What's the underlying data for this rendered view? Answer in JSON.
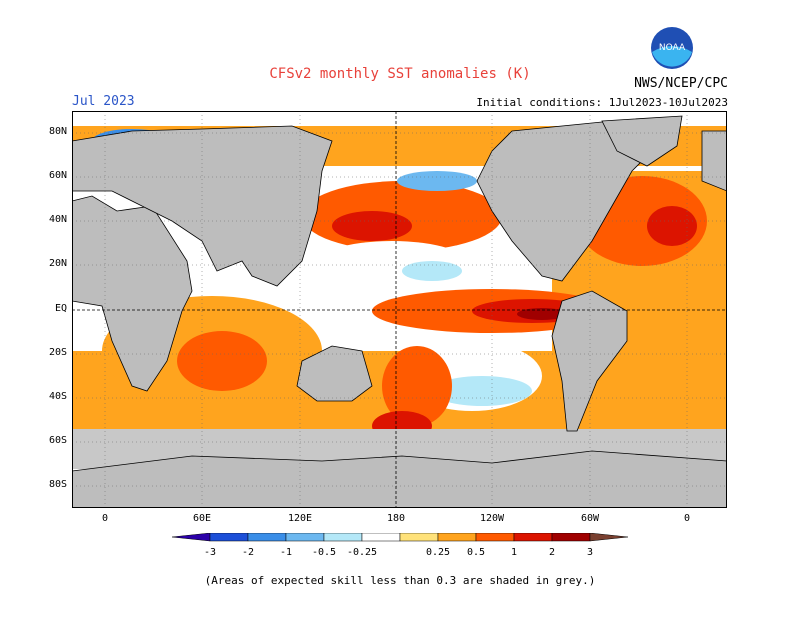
{
  "title": "CFSv2 monthly SST anomalies (K)",
  "month": "Jul 2023",
  "initial_conditions": "Initial conditions: 1Jul2023-10Jul2023",
  "agency": "NWS/NCEP/CPC",
  "logo_text": "NOAA",
  "note": "(Areas of expected skill less than 0.3 are shaded in grey.)",
  "y_ticks": [
    "80N",
    "60N",
    "40N",
    "20N",
    "EQ",
    "20S",
    "40S",
    "60S",
    "80S"
  ],
  "x_ticks": [
    "0",
    "60E",
    "120E",
    "180",
    "120W",
    "60W",
    "0"
  ],
  "legend": {
    "labels": [
      "-3",
      "-2",
      "-1",
      "-0.5",
      "-0.25",
      "0.25",
      "0.5",
      "1",
      "2",
      "3"
    ],
    "colors": [
      "#2b00a8",
      "#1c4fd8",
      "#3a8ee8",
      "#6cb8f0",
      "#b4e8f8",
      "#ffffff",
      "#ffe27a",
      "#ffa41e",
      "#ff5a00",
      "#dc1400",
      "#a00000",
      "#7a4030"
    ]
  },
  "colors": {
    "land": "#bdbdbd",
    "ocean_neutral": "#ffffff",
    "title": "#e8413a",
    "month": "#2a55c8"
  }
}
